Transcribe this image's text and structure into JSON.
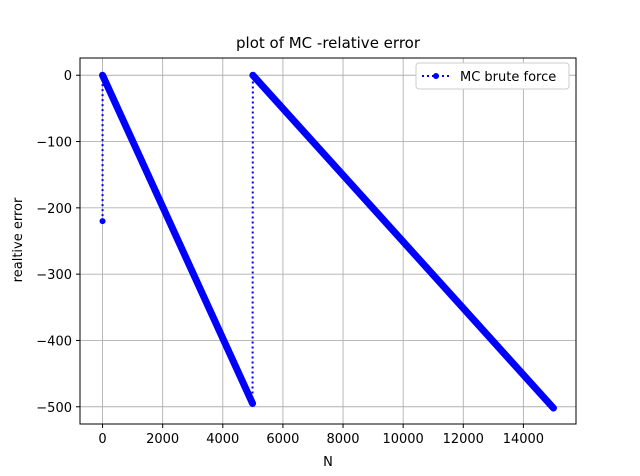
{
  "chart_data": {
    "type": "line",
    "title": "plot of MC -relative error",
    "xlabel": "N",
    "ylabel": "realtive error",
    "xlim": [
      -750,
      15750
    ],
    "ylim": [
      -526,
      26
    ],
    "xticks": [
      0,
      2000,
      4000,
      6000,
      8000,
      10000,
      12000,
      14000
    ],
    "yticks": [
      0,
      -100,
      -200,
      -300,
      -400,
      -500
    ],
    "xtick_labels": [
      "0",
      "2000",
      "4000",
      "6000",
      "8000",
      "10000",
      "12000",
      "14000"
    ],
    "ytick_labels": [
      "0",
      "−100",
      "−200",
      "−300",
      "−400",
      "−500"
    ],
    "grid": true,
    "legend_position": "upper right",
    "series": [
      {
        "name": "MC brute force",
        "color": "#0000ff",
        "linestyle": "dotted",
        "marker": "circle",
        "segments": [
          {
            "x": [
              0,
              0
            ],
            "y": [
              -220,
              0
            ]
          },
          {
            "x": [
              0,
              4990
            ],
            "y": [
              0,
              -495
            ]
          },
          {
            "x": [
              4990,
              5000
            ],
            "y": [
              -495,
              0
            ]
          },
          {
            "x": [
              5000,
              15000
            ],
            "y": [
              0,
              -502
            ]
          }
        ]
      }
    ]
  }
}
